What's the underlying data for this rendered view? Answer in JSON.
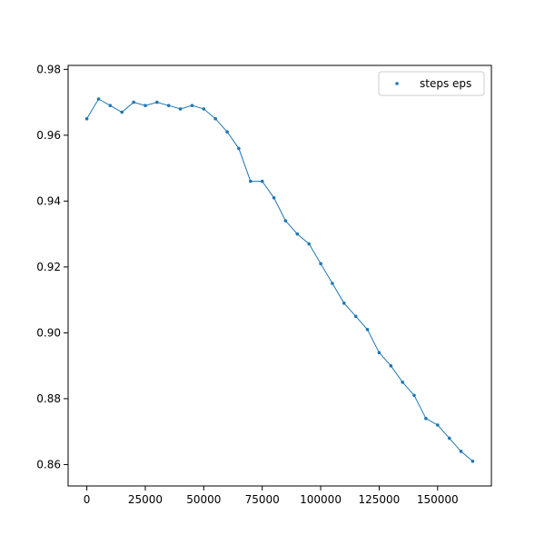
{
  "chart_data": {
    "type": "scatter",
    "title": "",
    "xlabel": "",
    "ylabel": "",
    "xlim": [
      -8000,
      173000
    ],
    "ylim": [
      0.8535,
      0.9812
    ],
    "xticks": [
      0,
      25000,
      50000,
      75000,
      100000,
      125000,
      150000
    ],
    "xtick_labels": [
      "0",
      "25000",
      "50000",
      "75000",
      "100000",
      "125000",
      "150000"
    ],
    "yticks": [
      0.86,
      0.88,
      0.9,
      0.92,
      0.94,
      0.96,
      0.98
    ],
    "ytick_labels": [
      "0.86",
      "0.88",
      "0.90",
      "0.92",
      "0.94",
      "0.96",
      "0.98"
    ],
    "grid": false,
    "legend_position": "top-right",
    "series": [
      {
        "name": "steps eps",
        "color": "#1f77b4",
        "marker": "dot",
        "connected": true,
        "x": [
          0,
          5000,
          10000,
          15000,
          20000,
          25000,
          30000,
          35000,
          40000,
          45000,
          50000,
          55000,
          60000,
          65000,
          70000,
          75000,
          80000,
          85000,
          90000,
          95000,
          100000,
          105000,
          110000,
          115000,
          120000,
          125000,
          130000,
          135000,
          140000,
          145000,
          150000,
          155000,
          160000,
          165000
        ],
        "y": [
          0.965,
          0.971,
          0.969,
          0.967,
          0.97,
          0.969,
          0.97,
          0.969,
          0.968,
          0.969,
          0.968,
          0.965,
          0.961,
          0.956,
          0.946,
          0.946,
          0.941,
          0.934,
          0.93,
          0.927,
          0.921,
          0.915,
          0.909,
          0.905,
          0.901,
          0.894,
          0.89,
          0.885,
          0.881,
          0.874,
          0.872,
          0.868,
          0.864,
          0.861
        ]
      }
    ]
  }
}
